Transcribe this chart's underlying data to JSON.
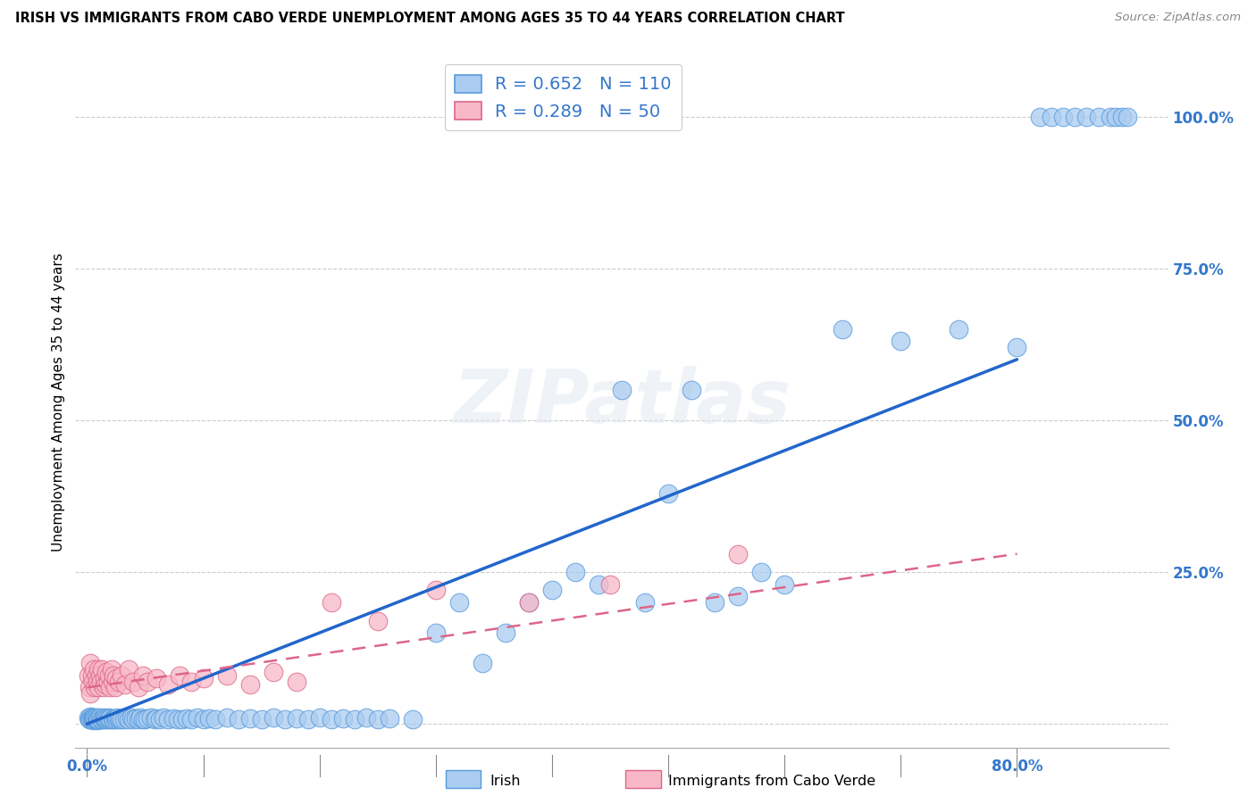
{
  "title": "IRISH VS IMMIGRANTS FROM CABO VERDE UNEMPLOYMENT AMONG AGES 35 TO 44 YEARS CORRELATION CHART",
  "source": "Source: ZipAtlas.com",
  "ylabel": "Unemployment Among Ages 35 to 44 years",
  "legend_label1": "Irish",
  "legend_label2": "Immigrants from Cabo Verde",
  "R1": 0.652,
  "N1": 110,
  "R2": 0.289,
  "N2": 50,
  "color_irish_fill": "#aaccf0",
  "color_irish_edge": "#5599dd",
  "color_cabo_fill": "#f8b8c8",
  "color_cabo_edge": "#dd6688",
  "color_irish_line": "#2266cc",
  "color_cabo_line": "#dd6688",
  "color_tick_label": "#3377cc",
  "watermark": "ZIPatlas",
  "background_color": "#ffffff",
  "grid_color": "#cccccc",
  "irish_x": [
    0.001,
    0.002,
    0.003,
    0.003,
    0.004,
    0.004,
    0.005,
    0.005,
    0.006,
    0.006,
    0.007,
    0.007,
    0.008,
    0.008,
    0.009,
    0.009,
    0.01,
    0.01,
    0.011,
    0.012,
    0.013,
    0.014,
    0.015,
    0.015,
    0.016,
    0.017,
    0.018,
    0.019,
    0.02,
    0.02,
    0.022,
    0.023,
    0.024,
    0.025,
    0.026,
    0.027,
    0.028,
    0.03,
    0.032,
    0.034,
    0.036,
    0.038,
    0.04,
    0.042,
    0.044,
    0.046,
    0.048,
    0.05,
    0.052,
    0.055,
    0.058,
    0.06,
    0.063,
    0.066,
    0.07,
    0.074,
    0.078,
    0.082,
    0.086,
    0.09,
    0.095,
    0.1,
    0.105,
    0.11,
    0.12,
    0.13,
    0.14,
    0.15,
    0.16,
    0.17,
    0.18,
    0.19,
    0.2,
    0.21,
    0.22,
    0.23,
    0.24,
    0.25,
    0.26,
    0.28,
    0.3,
    0.32,
    0.34,
    0.36,
    0.38,
    0.4,
    0.42,
    0.44,
    0.46,
    0.48,
    0.5,
    0.52,
    0.54,
    0.56,
    0.58,
    0.6,
    0.65,
    0.7,
    0.75,
    0.8,
    0.82,
    0.83,
    0.84,
    0.85,
    0.86,
    0.87,
    0.88,
    0.885,
    0.89,
    0.895
  ],
  "irish_y": [
    0.01,
    0.008,
    0.012,
    0.008,
    0.01,
    0.007,
    0.009,
    0.006,
    0.008,
    0.01,
    0.007,
    0.009,
    0.008,
    0.01,
    0.006,
    0.008,
    0.009,
    0.007,
    0.01,
    0.008,
    0.007,
    0.009,
    0.008,
    0.01,
    0.007,
    0.009,
    0.008,
    0.01,
    0.007,
    0.009,
    0.008,
    0.007,
    0.009,
    0.008,
    0.01,
    0.007,
    0.009,
    0.008,
    0.007,
    0.009,
    0.008,
    0.01,
    0.007,
    0.009,
    0.008,
    0.01,
    0.007,
    0.008,
    0.009,
    0.01,
    0.007,
    0.009,
    0.008,
    0.01,
    0.007,
    0.009,
    0.008,
    0.007,
    0.009,
    0.008,
    0.01,
    0.007,
    0.009,
    0.008,
    0.01,
    0.007,
    0.009,
    0.008,
    0.01,
    0.007,
    0.009,
    0.008,
    0.01,
    0.007,
    0.009,
    0.008,
    0.01,
    0.007,
    0.009,
    0.008,
    0.15,
    0.2,
    0.1,
    0.15,
    0.2,
    0.22,
    0.25,
    0.23,
    0.55,
    0.2,
    0.38,
    0.55,
    0.2,
    0.21,
    0.25,
    0.23,
    0.65,
    0.63,
    0.65,
    0.62,
    1.0,
    1.0,
    1.0,
    1.0,
    1.0,
    1.0,
    1.0,
    1.0,
    1.0,
    1.0
  ],
  "cabo_x": [
    0.001,
    0.002,
    0.003,
    0.003,
    0.004,
    0.005,
    0.006,
    0.007,
    0.008,
    0.009,
    0.01,
    0.01,
    0.011,
    0.012,
    0.013,
    0.014,
    0.015,
    0.016,
    0.017,
    0.018,
    0.019,
    0.02,
    0.021,
    0.022,
    0.023,
    0.024,
    0.025,
    0.027,
    0.03,
    0.033,
    0.036,
    0.04,
    0.044,
    0.048,
    0.052,
    0.06,
    0.07,
    0.08,
    0.09,
    0.1,
    0.12,
    0.14,
    0.16,
    0.18,
    0.21,
    0.25,
    0.3,
    0.38,
    0.45,
    0.56
  ],
  "cabo_y": [
    0.08,
    0.06,
    0.1,
    0.05,
    0.08,
    0.07,
    0.09,
    0.06,
    0.08,
    0.07,
    0.09,
    0.06,
    0.08,
    0.07,
    0.09,
    0.06,
    0.075,
    0.065,
    0.085,
    0.07,
    0.08,
    0.06,
    0.09,
    0.07,
    0.08,
    0.06,
    0.075,
    0.07,
    0.08,
    0.065,
    0.09,
    0.07,
    0.06,
    0.08,
    0.07,
    0.075,
    0.065,
    0.08,
    0.07,
    0.075,
    0.08,
    0.065,
    0.085,
    0.07,
    0.2,
    0.17,
    0.22,
    0.2,
    0.23,
    0.28
  ],
  "irish_line_x": [
    0.0,
    0.8
  ],
  "irish_line_y": [
    0.0,
    0.6
  ],
  "cabo_line_x": [
    0.0,
    0.8
  ],
  "cabo_line_y": [
    0.06,
    0.28
  ],
  "xmin": -0.01,
  "xmax": 0.93,
  "ymin": -0.04,
  "ymax": 1.1,
  "xtick_positions": [
    0.0,
    0.1,
    0.2,
    0.3,
    0.4,
    0.5,
    0.6,
    0.7,
    0.8
  ],
  "ytick_positions": [
    0.0,
    0.25,
    0.5,
    0.75,
    1.0
  ],
  "ytick_labels": [
    "",
    "25.0%",
    "50.0%",
    "75.0%",
    "100.0%"
  ]
}
